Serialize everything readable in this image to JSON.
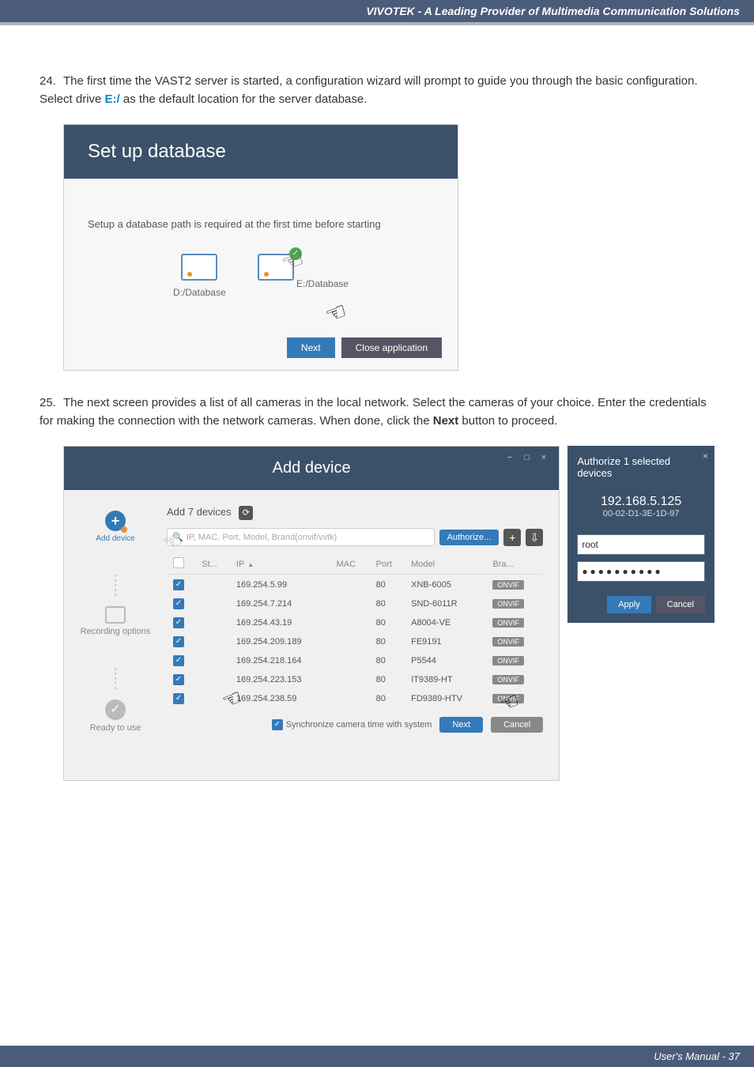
{
  "header": {
    "title": "VIVOTEK - A Leading Provider of Multimedia Communication Solutions"
  },
  "step24": {
    "num": "24.",
    "text_before": "The first time the VAST2 server is started, a configuration wizard will prompt to guide you through the basic configuration. Select drive ",
    "drive": "E:/",
    "text_after": " as the default location for the server database."
  },
  "db_dialog": {
    "title": "Set up database",
    "subtitle": "Setup a database path is required at the first time before starting",
    "drives": [
      "D:/Database",
      "E:/Database"
    ],
    "next": "Next",
    "close": "Close application"
  },
  "step25": {
    "num": "25.",
    "text": "The next screen provides a list of all cameras in the local network. Select the cameras of your choice. Enter the credentials for making the connection with the network cameras. When done, click the ",
    "bold": "Next",
    "text2": " button to proceed."
  },
  "dev_dialog": {
    "title": "Add device",
    "count_text": "Add 7 devices",
    "search_placeholder": "IP, MAC, Port, Model, Brand(onvif/vvtk)",
    "authorize": "Authorize...",
    "side": {
      "step1": "Add device",
      "step2": "Recording options",
      "step3": "Ready to use"
    },
    "columns": [
      "St...",
      "IP",
      "MAC",
      "Port",
      "Model",
      "Bra..."
    ],
    "rows": [
      {
        "ip": "169.254.5.99",
        "port": "80",
        "model": "XNB-6005",
        "brand": "ONVIF"
      },
      {
        "ip": "169.254.7.214",
        "port": "80",
        "model": "SND-6011R",
        "brand": "ONVIF"
      },
      {
        "ip": "169.254.43.19",
        "port": "80",
        "model": "A8004-VE",
        "brand": "ONVIF"
      },
      {
        "ip": "169.254.209.189",
        "port": "80",
        "model": "FE9191",
        "brand": "ONVIF"
      },
      {
        "ip": "169.254.218.164",
        "port": "80",
        "model": "P5544",
        "brand": "ONVIF"
      },
      {
        "ip": "169.254.223.153",
        "port": "80",
        "model": "IT9389-HT",
        "brand": "ONVIF"
      },
      {
        "ip": "169.254.238.59",
        "port": "80",
        "model": "FD9389-HTV",
        "brand": "ONVIF"
      }
    ],
    "sync_text": "Synchronize camera time with system",
    "next": "Next",
    "cancel": "Cancel"
  },
  "auth_panel": {
    "title": "Authorize 1 selected devices",
    "ip": "192.168.5.125",
    "mac": "00-02-D1-3E-1D-97",
    "user": "root",
    "password": "●●●●●●●●●●",
    "apply": "Apply",
    "cancel": "Cancel"
  },
  "footer": {
    "text": "User's Manual - 37"
  },
  "colors": {
    "header_bg": "#4a5c7a",
    "dialog_header": "#3b5169",
    "primary": "#357ab8",
    "link": "#0088cc"
  }
}
